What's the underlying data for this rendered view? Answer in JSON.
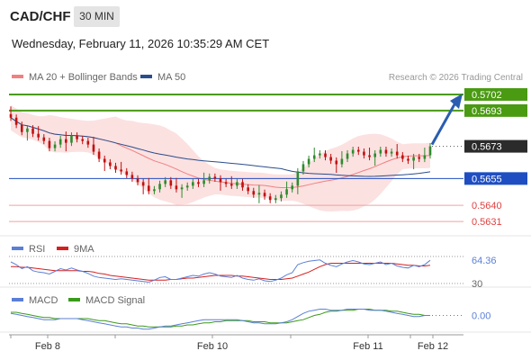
{
  "header": {
    "symbol": "CAD/CHF",
    "timeframe": "30 MIN",
    "datetime": "Wednesday, February 11, 2026 10:35:29 AM CET"
  },
  "legend": {
    "bollinger": {
      "label": "MA 20 + Bollinger Bands",
      "color": "#f08080"
    },
    "ma50": {
      "label": "MA 50",
      "color": "#2a4d8c"
    },
    "credit": "Research © 2026 Trading Central"
  },
  "rsi_legend": {
    "rsi": "RSI",
    "ma": "9MA",
    "rsi_color": "#5b7fd6",
    "ma_color": "#d62020"
  },
  "macd_legend": {
    "macd": "MACD",
    "signal": "MACD Signal",
    "macd_color": "#5b7fd6",
    "signal_color": "#3b9a1b"
  },
  "colors": {
    "green_level": "#4a9a12",
    "blue_level": "#1f4ec2",
    "red_level": "#f08080",
    "up": "#2e8b2e",
    "down": "#c01010",
    "band_fill": "#fbd9d9"
  },
  "chart_data": [
    {
      "type": "candlestick",
      "symbol": "CAD/CHF",
      "interval": "30 MIN",
      "x_ticks": [
        "Feb 8",
        "Feb 10",
        "Feb 11",
        "Feb 12"
      ],
      "price_levels": [
        {
          "value": "0.5702",
          "kind": "resistance",
          "color": "#4a9a12"
        },
        {
          "value": "0.5693",
          "kind": "resistance",
          "color": "#4a9a12"
        },
        {
          "value": "0.5673",
          "kind": "last",
          "color": "#222222"
        },
        {
          "value": "0.5655",
          "kind": "pivot",
          "color": "#1f4ec2"
        },
        {
          "value": "0.5640",
          "kind": "support",
          "color": "#e04040"
        },
        {
          "value": "0.5631",
          "kind": "support",
          "color": "#e04040"
        }
      ],
      "close_series": [
        0.5689,
        0.5685,
        0.5681,
        0.5683,
        0.568,
        0.5678,
        0.5676,
        0.5672,
        0.5674,
        0.5677,
        0.5675,
        0.5679,
        0.5677,
        0.5676,
        0.5674,
        0.567,
        0.5666,
        0.5664,
        0.5662,
        0.566,
        0.5659,
        0.5657,
        0.5655,
        0.5653,
        0.5651,
        0.5648,
        0.5649,
        0.5652,
        0.5654,
        0.5651,
        0.5649,
        0.565,
        0.5651,
        0.5653,
        0.5652,
        0.5654,
        0.5656,
        0.5655,
        0.5653,
        0.5652,
        0.5651,
        0.5653,
        0.565,
        0.5648,
        0.5646,
        0.5647,
        0.5645,
        0.5643,
        0.5644,
        0.5646,
        0.5649,
        0.5651,
        0.5659,
        0.5663,
        0.5666,
        0.5668,
        0.5669,
        0.5667,
        0.5665,
        0.5663,
        0.5666,
        0.5669,
        0.5671,
        0.567,
        0.5668,
        0.5667,
        0.5669,
        0.5671,
        0.5669,
        0.567,
        0.5668,
        0.5666,
        0.5665,
        0.5667,
        0.5666,
        0.5668,
        0.5673
      ],
      "trend_arrow": {
        "from": 0.5674,
        "to": 0.5702
      }
    },
    {
      "type": "line",
      "name": "RSI",
      "ylim": [
        30,
        70
      ],
      "levels": [
        30,
        70
      ],
      "last_value": "64.36",
      "tick_label": "30",
      "rsi": [
        62,
        58,
        52,
        55,
        49,
        47,
        46,
        44,
        48,
        52,
        50,
        53,
        50,
        48,
        45,
        41,
        39,
        38,
        37,
        36,
        37,
        36,
        35,
        34,
        33,
        32,
        35,
        39,
        40,
        36,
        36,
        38,
        40,
        42,
        41,
        44,
        46,
        44,
        41,
        40,
        39,
        42,
        38,
        36,
        35,
        37,
        34,
        33,
        35,
        38,
        43,
        46,
        58,
        61,
        63,
        64,
        65,
        60,
        57,
        55,
        59,
        62,
        64,
        62,
        59,
        58,
        60,
        62,
        58,
        60,
        56,
        54,
        53,
        57,
        55,
        58,
        64.36
      ],
      "ma9": [
        55,
        55,
        54,
        54,
        53,
        52,
        51,
        50,
        49,
        49,
        49,
        49,
        49,
        48,
        48,
        47,
        45,
        44,
        42,
        41,
        40,
        39,
        38,
        37,
        36,
        35,
        35,
        35,
        35,
        36,
        36,
        37,
        38,
        38,
        39,
        40,
        41,
        42,
        42,
        42,
        42,
        41,
        41,
        40,
        39,
        38,
        37,
        36,
        36,
        36,
        37,
        38,
        41,
        44,
        47,
        51,
        55,
        58,
        60,
        60,
        60,
        60,
        60,
        60,
        60,
        60,
        60,
        60,
        60,
        60,
        59,
        58,
        57,
        57,
        56,
        56,
        57
      ]
    },
    {
      "type": "line",
      "name": "MACD",
      "last_value": "0.00",
      "macd": [
        0.0002,
        0.0001,
        0.0,
        -0.0001,
        -0.0002,
        -0.0003,
        -0.0004,
        -0.0004,
        -0.0004,
        -0.0003,
        -0.0003,
        -0.0003,
        -0.0003,
        -0.0004,
        -0.0005,
        -0.0006,
        -0.0007,
        -0.0008,
        -0.0009,
        -0.001,
        -0.0011,
        -0.0011,
        -0.0012,
        -0.0012,
        -0.0013,
        -0.0013,
        -0.0012,
        -0.0011,
        -0.001,
        -0.001,
        -0.0009,
        -0.0008,
        -0.0007,
        -0.0006,
        -0.0005,
        -0.0004,
        -0.0004,
        -0.0004,
        -0.0004,
        -0.0004,
        -0.0004,
        -0.0004,
        -0.0005,
        -0.0006,
        -0.0007,
        -0.0007,
        -0.0008,
        -0.0008,
        -0.0008,
        -0.0007,
        -0.0006,
        -0.0004,
        -0.0001,
        0.0002,
        0.0004,
        0.0005,
        0.0006,
        0.0006,
        0.0005,
        0.0005,
        0.0005,
        0.0006,
        0.0006,
        0.0006,
        0.0006,
        0.0005,
        0.0005,
        0.0005,
        0.0004,
        0.0003,
        0.0002,
        0.0001,
        0.0,
        -0.0001,
        -0.0001,
        0.0,
        0.0
      ],
      "signal": [
        0.0003,
        0.0003,
        0.0002,
        0.0001,
        0.0,
        -0.0001,
        -0.0002,
        -0.0002,
        -0.0003,
        -0.0003,
        -0.0003,
        -0.0003,
        -0.0003,
        -0.0003,
        -0.0003,
        -0.0004,
        -0.0005,
        -0.0005,
        -0.0006,
        -0.0007,
        -0.0008,
        -0.0008,
        -0.0009,
        -0.001,
        -0.001,
        -0.0011,
        -0.0011,
        -0.0011,
        -0.0011,
        -0.0011,
        -0.001,
        -0.001,
        -0.0009,
        -0.0009,
        -0.0008,
        -0.0007,
        -0.0007,
        -0.0006,
        -0.0006,
        -0.0005,
        -0.0005,
        -0.0005,
        -0.0005,
        -0.0005,
        -0.0006,
        -0.0006,
        -0.0006,
        -0.0007,
        -0.0007,
        -0.0007,
        -0.0007,
        -0.0006,
        -0.0005,
        -0.0004,
        -0.0002,
        0.0,
        0.0001,
        0.0003,
        0.0004,
        0.0004,
        0.0005,
        0.0005,
        0.0005,
        0.0006,
        0.0006,
        0.0006,
        0.0005,
        0.0005,
        0.0005,
        0.0004,
        0.0004,
        0.0003,
        0.0002,
        0.0001,
        0.0001,
        0.0,
        0.0
      ]
    }
  ]
}
